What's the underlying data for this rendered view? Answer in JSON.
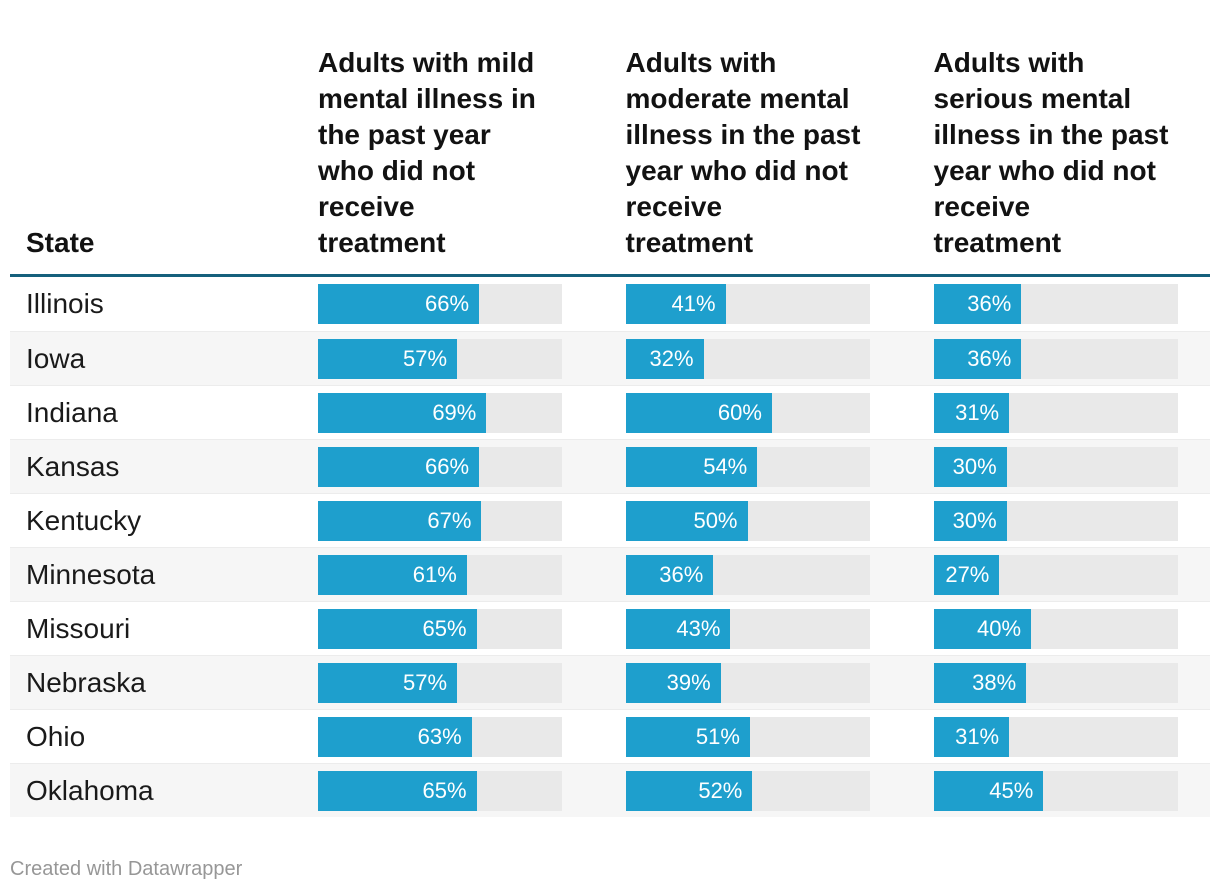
{
  "table": {
    "columns": [
      {
        "label": "State"
      },
      {
        "label": "Adults with mild\nmental illness in\nthe past year\nwho did not\nreceive\ntreatment"
      },
      {
        "label": "Adults with\nmoderate mental\nillness in the past\nyear who did not\nreceive\ntreatment"
      },
      {
        "label": "Adults with\nserious mental\nillness in the past\nyear who did not\nreceive\ntreatment"
      }
    ],
    "rows": [
      {
        "state": "Illinois",
        "values": [
          66,
          41,
          36
        ],
        "labels": [
          "66%",
          "41%",
          "36%"
        ]
      },
      {
        "state": "Iowa",
        "values": [
          57,
          32,
          36
        ],
        "labels": [
          "57%",
          "32%",
          "36%"
        ]
      },
      {
        "state": "Indiana",
        "values": [
          69,
          60,
          31
        ],
        "labels": [
          "69%",
          "60%",
          "31%"
        ]
      },
      {
        "state": "Kansas",
        "values": [
          66,
          54,
          30
        ],
        "labels": [
          "66%",
          "54%",
          "30%"
        ]
      },
      {
        "state": "Kentucky",
        "values": [
          67,
          50,
          30
        ],
        "labels": [
          "67%",
          "50%",
          "30%"
        ]
      },
      {
        "state": "Minnesota",
        "values": [
          61,
          36,
          27
        ],
        "labels": [
          "61%",
          "36%",
          "27%"
        ]
      },
      {
        "state": "Missouri",
        "values": [
          65,
          43,
          40
        ],
        "labels": [
          "65%",
          "43%",
          "40%"
        ]
      },
      {
        "state": "Nebraska",
        "values": [
          57,
          39,
          38
        ],
        "labels": [
          "57%",
          "39%",
          "38%"
        ]
      },
      {
        "state": "Ohio",
        "values": [
          63,
          51,
          31
        ],
        "labels": [
          "63%",
          "51%",
          "31%"
        ]
      },
      {
        "state": "Oklahoma",
        "values": [
          65,
          52,
          45
        ],
        "labels": [
          "65%",
          "52%",
          "45%"
        ]
      }
    ]
  },
  "footer": {
    "credit": "Created with Datawrapper"
  },
  "colors": {
    "bar": "#1e9fcd",
    "track": "#e9e9e9",
    "header_rule": "#16607c",
    "stripe": "#f6f6f6",
    "credit_text": "#979797"
  },
  "chart_data": {
    "type": "table",
    "title": "",
    "categories": [
      "Illinois",
      "Iowa",
      "Indiana",
      "Kansas",
      "Kentucky",
      "Minnesota",
      "Missouri",
      "Nebraska",
      "Ohio",
      "Oklahoma"
    ],
    "series": [
      {
        "name": "Adults with mild mental illness in the past year who did not receive treatment",
        "values": [
          66,
          57,
          69,
          66,
          67,
          61,
          65,
          57,
          63,
          65
        ]
      },
      {
        "name": "Adults with moderate mental illness in the past year who did not receive treatment",
        "values": [
          41,
          32,
          60,
          54,
          50,
          36,
          43,
          39,
          51,
          52
        ]
      },
      {
        "name": "Adults with serious mental illness in the past year who did not receive treatment",
        "values": [
          36,
          36,
          31,
          30,
          30,
          27,
          40,
          38,
          31,
          45
        ]
      }
    ],
    "value_format": "percent",
    "xlim": [
      0,
      100
    ],
    "bar_color": "#1e9fcd",
    "layout": "horizontal bars embedded per table cell, zebra-striped rows, credit line bottom-left"
  }
}
